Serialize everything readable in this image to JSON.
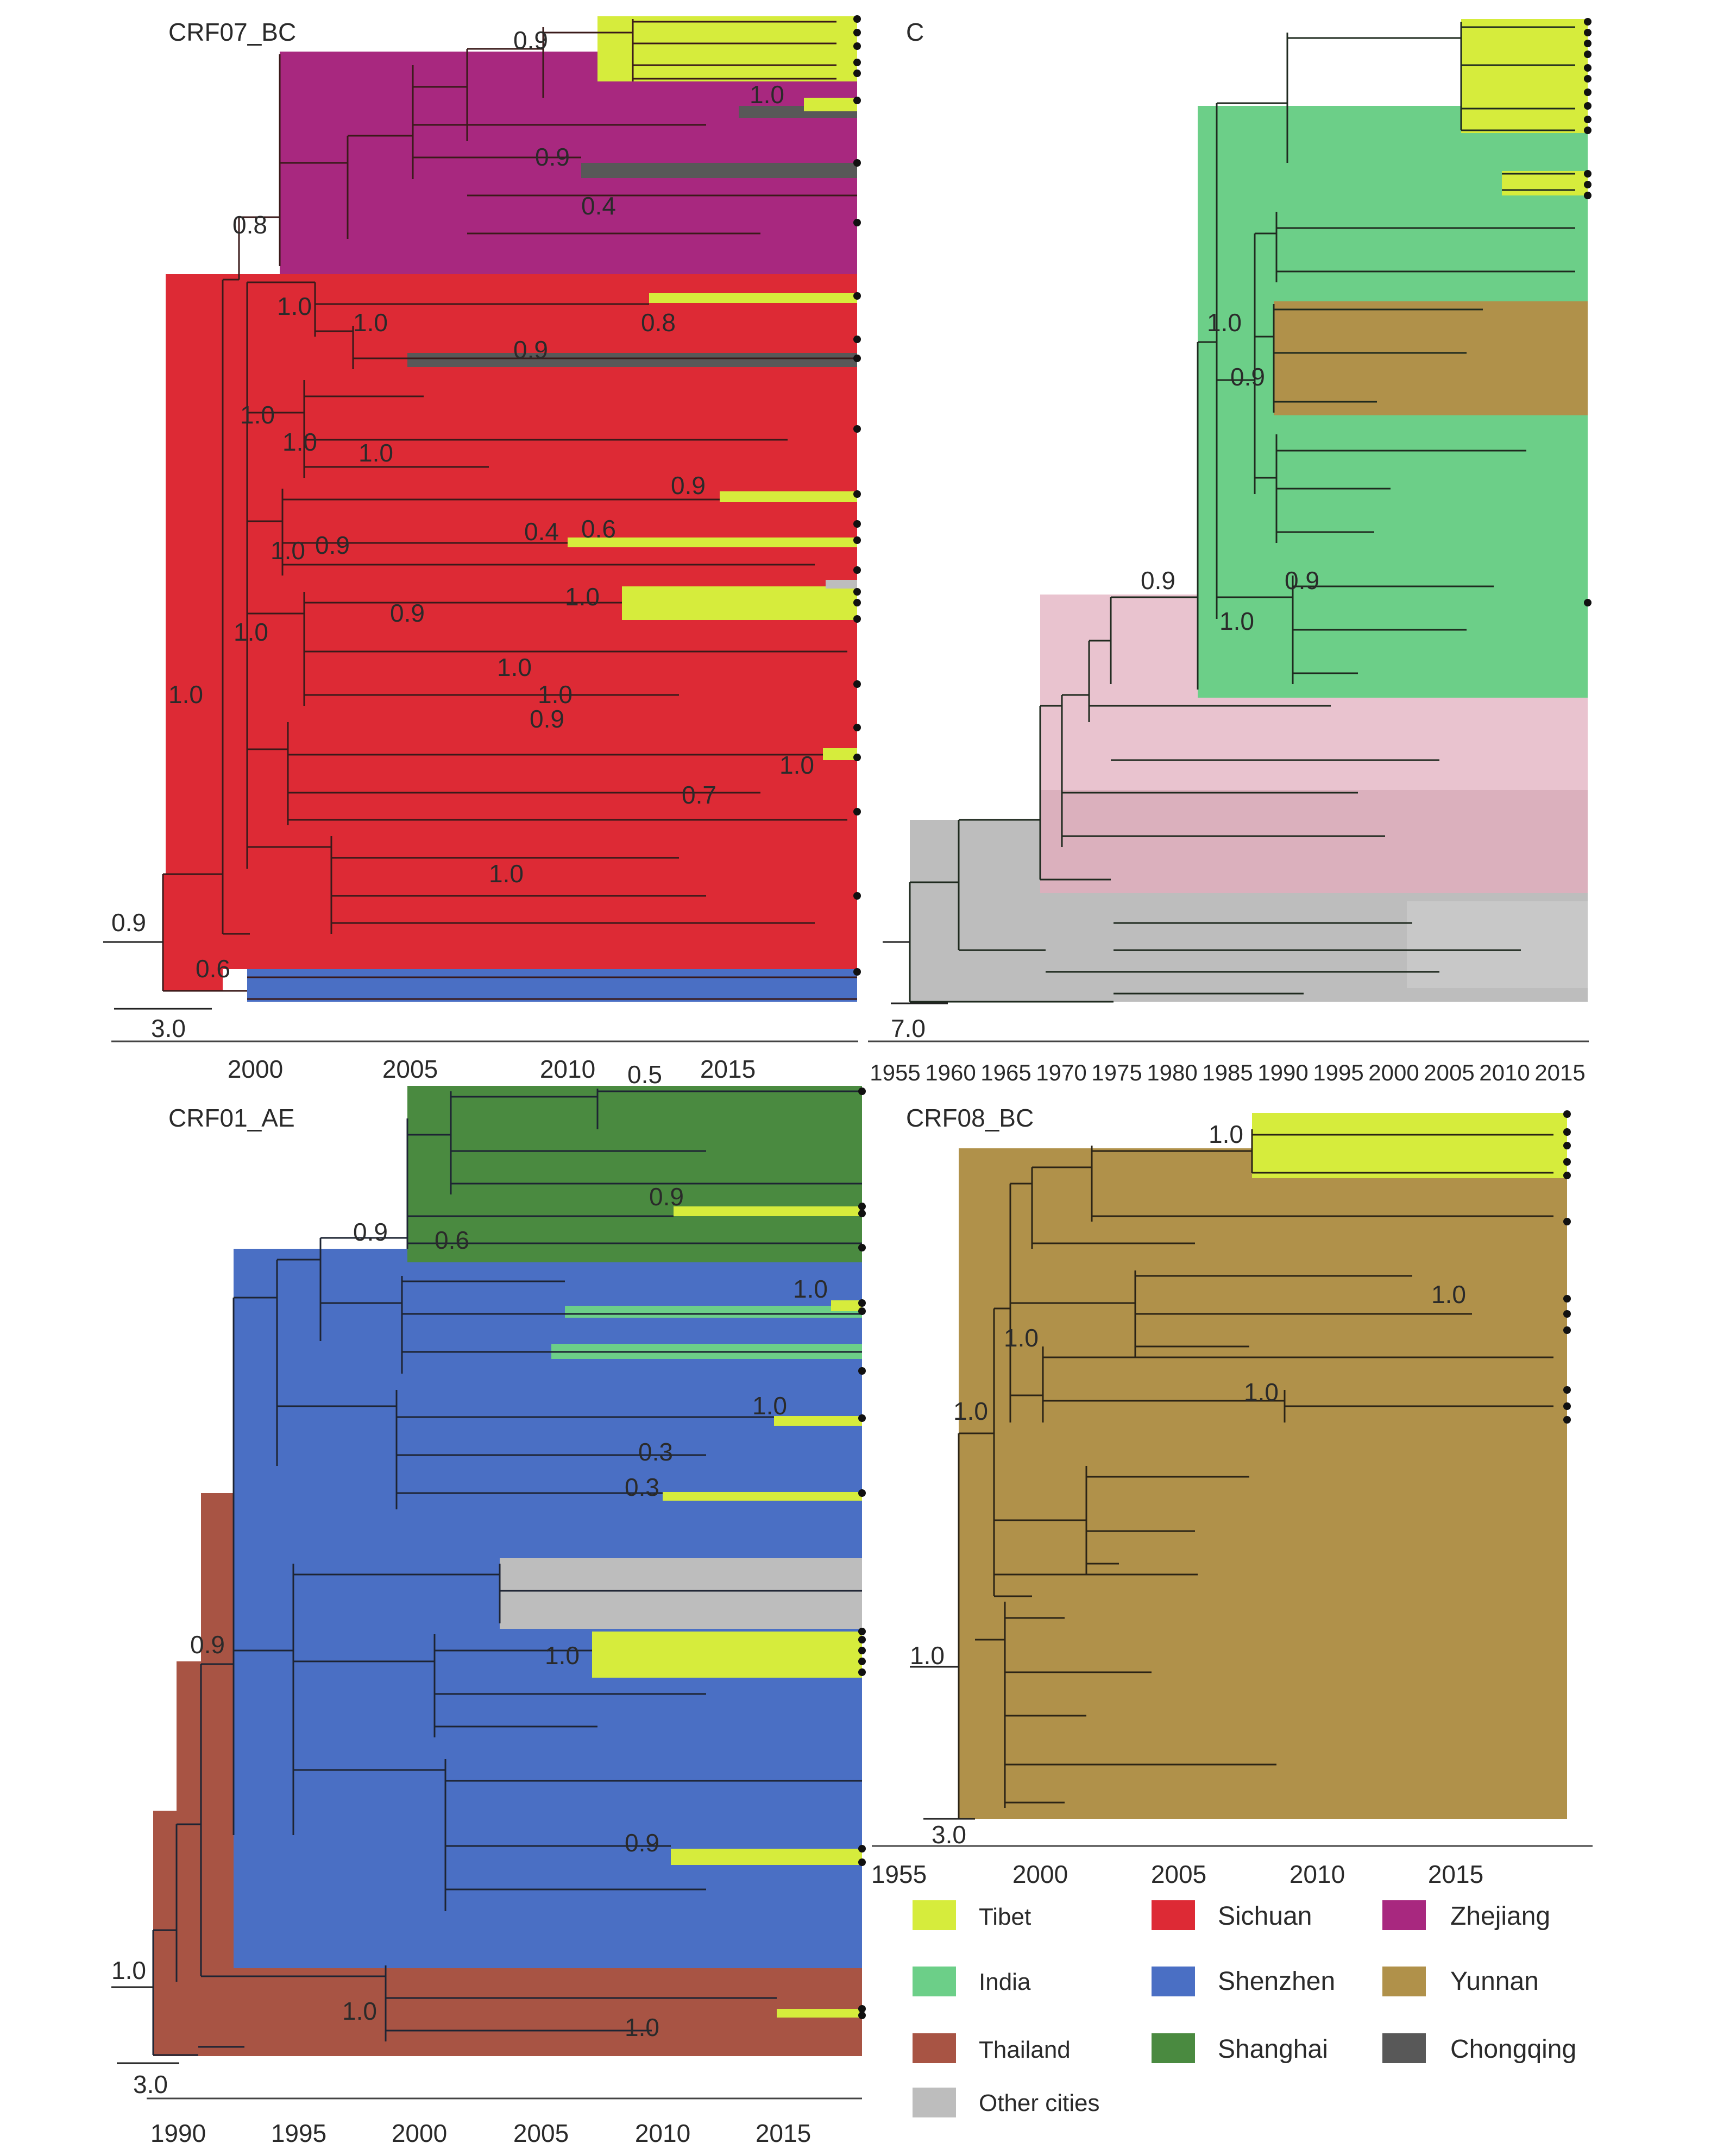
{
  "colors": {
    "Tibet": "#d6ec3c",
    "India": "#6ccf88",
    "Thailand": "#a85444",
    "Other cities": "#bdbdbd",
    "Sichuan": "#dd2a35",
    "Shenzhen": "#4a6fc4",
    "Shanghai": "#4a8a40",
    "Zhejiang": "#a8287f",
    "Yunnan": "#b0914a",
    "Chongqing": "#585858",
    "Pink": "#e9c3cf",
    "Grey": "#bdbdbd"
  },
  "panels": {
    "crf07": {
      "title": "CRF07_BC",
      "scale": "3.0",
      "axis_ticks": [
        "2000",
        "2005",
        "2010",
        "2015"
      ],
      "supports": [
        "0.9",
        "1.0",
        "0.9",
        "0.4",
        "0.8",
        "1.0",
        "1.0",
        "0.8",
        "0.9",
        "1.0",
        "1.0",
        "1.0",
        "0.9",
        "1.0",
        "0.9",
        "0.4",
        "0.6",
        "0.9",
        "1.0",
        "1.0",
        "1.0",
        "1.0",
        "0.9",
        "1.0",
        "0.7",
        "1.0",
        "1.0",
        "0.9",
        "0.6"
      ]
    },
    "c": {
      "title": "C",
      "scale": "7.0",
      "axis_ticks": [
        "1955",
        "1960",
        "1965",
        "1970",
        "1975",
        "1980",
        "1985",
        "1990",
        "1995",
        "2000",
        "2005",
        "2010",
        "2015"
      ],
      "supports": [
        "1.0",
        "0.9",
        "0.9",
        "0.9",
        "1.0"
      ]
    },
    "crf01": {
      "title": "CRF01_AE",
      "scale": "3.0",
      "axis_ticks": [
        "1990",
        "1995",
        "2000",
        "2005",
        "2010",
        "2015"
      ],
      "supports": [
        "0.5",
        "0.9",
        "0.9",
        "0.6",
        "1.0",
        "1.0",
        "0.3",
        "0.3",
        "1.0",
        "0.9",
        "0.9",
        "1.0",
        "1.0",
        "1.0"
      ]
    },
    "crf08": {
      "title": "CRF08_BC",
      "scale": "3.0",
      "axis_ticks": [
        "1955",
        "2000",
        "2005",
        "2010",
        "2015"
      ],
      "supports": [
        "1.0",
        "1.0",
        "1.0",
        "1.0",
        "1.0",
        "1.0"
      ]
    }
  },
  "legend": [
    {
      "label": "Tibet",
      "color": "#d6ec3c"
    },
    {
      "label": "Sichuan",
      "color": "#dd2a35"
    },
    {
      "label": "Zhejiang",
      "color": "#a8287f"
    },
    {
      "label": "India",
      "color": "#6ccf88"
    },
    {
      "label": "Shenzhen",
      "color": "#4a6fc4"
    },
    {
      "label": "Yunnan",
      "color": "#b0914a"
    },
    {
      "label": "Thailand",
      "color": "#a85444"
    },
    {
      "label": "Shanghai",
      "color": "#4a8a40"
    },
    {
      "label": "Chongqing",
      "color": "#585858"
    },
    {
      "label": "Other cities",
      "color": "#bdbdbd"
    }
  ]
}
